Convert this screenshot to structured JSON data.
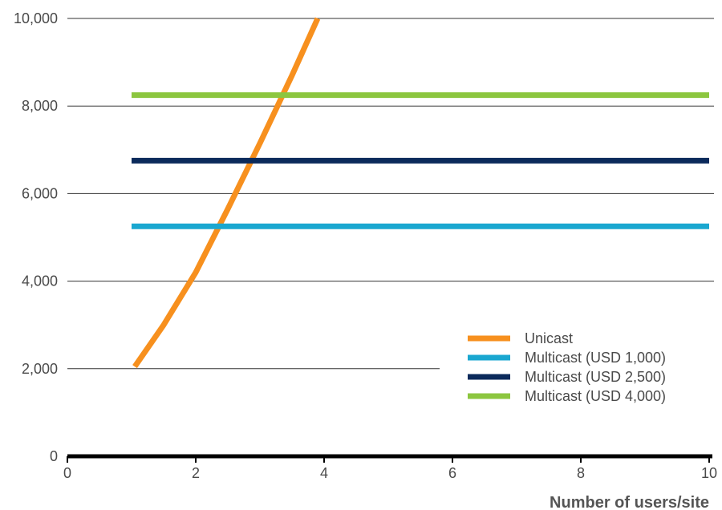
{
  "chart_data": {
    "type": "line",
    "title": "",
    "xlabel": "Number of users/site",
    "ylabel": "",
    "xlim": [
      0,
      10
    ],
    "ylim": [
      0,
      10000
    ],
    "x_ticks": [
      "0",
      "2",
      "4",
      "6",
      "8",
      "10"
    ],
    "y_ticks": [
      "0",
      "2,000",
      "4,000",
      "6,000",
      "8,000",
      "10,000"
    ],
    "grid": "horizontal",
    "legend_position": "bottom-right",
    "series": [
      {
        "name": "Unicast",
        "color": "#f7901e",
        "x": [
          1.05,
          1.5,
          2.0,
          2.5,
          3.0,
          3.5,
          3.9
        ],
        "y": [
          2050,
          3000,
          4200,
          5650,
          7150,
          8700,
          10000
        ]
      },
      {
        "name": "Multicast (USD 1,000)",
        "color": "#1aa7d0",
        "x": [
          1,
          10
        ],
        "y": [
          5250,
          5250
        ]
      },
      {
        "name": "Multicast (USD 2,500)",
        "color": "#0b2a5b",
        "x": [
          1,
          10
        ],
        "y": [
          6750,
          6750
        ]
      },
      {
        "name": "Multicast (USD 4,000)",
        "color": "#8cc63f",
        "x": [
          1,
          10
        ],
        "y": [
          8250,
          8250
        ]
      }
    ]
  }
}
